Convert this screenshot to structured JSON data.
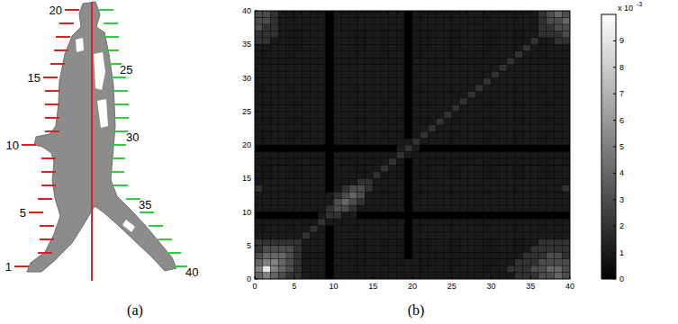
{
  "panel_a": {
    "caption": "(a)",
    "points": 40,
    "labels": [
      1,
      5,
      10,
      15,
      20,
      25,
      30,
      35,
      40
    ]
  },
  "chart_data": {
    "type": "heatmap",
    "caption": "(b)",
    "xlim": [
      0,
      40
    ],
    "ylim": [
      0,
      40
    ],
    "xticks": [
      0,
      5,
      10,
      15,
      20,
      25,
      30,
      35,
      40
    ],
    "yticks": [
      0,
      5,
      10,
      15,
      20,
      25,
      30,
      35,
      40
    ],
    "colorbar": {
      "range": [
        0,
        10
      ],
      "ticks": [
        0,
        1,
        2,
        3,
        4,
        5,
        6,
        7,
        8,
        9
      ],
      "scale_base": "x 10",
      "scale_exponent": "-3"
    },
    "cells": [
      [
        4,
        5,
        4,
        3,
        2,
        2,
        1,
        1,
        1,
        0,
        1,
        1,
        1,
        1,
        1,
        1,
        1,
        1,
        1,
        1,
        1,
        1,
        1,
        1,
        1,
        1,
        1,
        1,
        1,
        1,
        1,
        1,
        1,
        2,
        2,
        2,
        3,
        3,
        4,
        3
      ],
      [
        5,
        9,
        5,
        4,
        3,
        2,
        1,
        1,
        1,
        0,
        1,
        1,
        1,
        1,
        1,
        1,
        1,
        1,
        1,
        1,
        1,
        1,
        1,
        1,
        1,
        1,
        1,
        1,
        1,
        1,
        1,
        1,
        2,
        2,
        2,
        3,
        3,
        4,
        4,
        3
      ],
      [
        4,
        5,
        5,
        4,
        3,
        2,
        1,
        1,
        1,
        0,
        1,
        1,
        1,
        1,
        1,
        1,
        1,
        1,
        1,
        1,
        1,
        1,
        1,
        1,
        1,
        1,
        1,
        1,
        1,
        1,
        1,
        1,
        1,
        2,
        2,
        2,
        3,
        3,
        3,
        3
      ],
      [
        3,
        4,
        4,
        4,
        3,
        2,
        1,
        1,
        1,
        0,
        1,
        1,
        1,
        1,
        1,
        1,
        1,
        1,
        1,
        0,
        1,
        1,
        1,
        1,
        1,
        1,
        1,
        1,
        1,
        1,
        1,
        1,
        1,
        1,
        2,
        2,
        2,
        3,
        3,
        2
      ],
      [
        2,
        3,
        3,
        3,
        3,
        2,
        1,
        1,
        1,
        0,
        1,
        1,
        1,
        1,
        1,
        1,
        1,
        1,
        1,
        0,
        1,
        1,
        1,
        1,
        1,
        1,
        1,
        1,
        1,
        1,
        1,
        1,
        1,
        1,
        1,
        2,
        2,
        2,
        2,
        2
      ],
      [
        2,
        2,
        2,
        2,
        2,
        2,
        1,
        1,
        1,
        0,
        1,
        1,
        1,
        1,
        1,
        1,
        1,
        1,
        1,
        0,
        1,
        1,
        1,
        1,
        1,
        1,
        1,
        1,
        1,
        1,
        1,
        1,
        1,
        1,
        1,
        1,
        2,
        2,
        2,
        2
      ],
      [
        1,
        1,
        1,
        1,
        1,
        1,
        2,
        1,
        1,
        0,
        1,
        1,
        1,
        1,
        1,
        1,
        1,
        1,
        1,
        0,
        1,
        1,
        1,
        1,
        1,
        1,
        1,
        1,
        1,
        1,
        1,
        1,
        1,
        1,
        1,
        1,
        1,
        1,
        1,
        1
      ],
      [
        1,
        1,
        1,
        1,
        1,
        1,
        1,
        2,
        1,
        0,
        1,
        1,
        1,
        1,
        1,
        1,
        1,
        1,
        1,
        0,
        1,
        1,
        1,
        1,
        1,
        1,
        1,
        1,
        1,
        1,
        1,
        1,
        1,
        1,
        1,
        1,
        1,
        1,
        1,
        1
      ],
      [
        1,
        1,
        1,
        1,
        1,
        1,
        1,
        1,
        2,
        1,
        1,
        1,
        1,
        1,
        1,
        1,
        1,
        1,
        1,
        0,
        1,
        1,
        1,
        1,
        1,
        1,
        1,
        1,
        1,
        1,
        1,
        1,
        1,
        1,
        1,
        1,
        1,
        1,
        1,
        1
      ],
      [
        0,
        0,
        0,
        0,
        0,
        0,
        0,
        0,
        1,
        2,
        2,
        1,
        1,
        0,
        0,
        0,
        0,
        0,
        0,
        0,
        0,
        0,
        0,
        0,
        0,
        0,
        0,
        0,
        0,
        0,
        0,
        0,
        0,
        0,
        0,
        0,
        0,
        0,
        0,
        0
      ],
      [
        1,
        1,
        1,
        1,
        1,
        1,
        1,
        1,
        1,
        2,
        3,
        3,
        2,
        1,
        1,
        1,
        1,
        1,
        1,
        0,
        1,
        1,
        1,
        1,
        1,
        1,
        1,
        1,
        1,
        1,
        1,
        1,
        1,
        1,
        1,
        1,
        1,
        1,
        1,
        1
      ],
      [
        1,
        1,
        1,
        1,
        1,
        1,
        1,
        1,
        1,
        1,
        3,
        4,
        3,
        2,
        1,
        1,
        1,
        1,
        1,
        0,
        1,
        1,
        1,
        1,
        1,
        1,
        1,
        1,
        1,
        1,
        1,
        1,
        1,
        1,
        1,
        1,
        1,
        1,
        1,
        1
      ],
      [
        1,
        1,
        1,
        1,
        1,
        1,
        1,
        1,
        1,
        1,
        2,
        3,
        4,
        3,
        1,
        1,
        1,
        1,
        1,
        0,
        1,
        1,
        1,
        1,
        1,
        1,
        1,
        1,
        1,
        1,
        1,
        1,
        1,
        1,
        1,
        1,
        1,
        1,
        1,
        1
      ],
      [
        2,
        1,
        1,
        1,
        1,
        1,
        1,
        1,
        1,
        0,
        1,
        2,
        3,
        3,
        2,
        1,
        1,
        1,
        1,
        0,
        1,
        1,
        1,
        1,
        1,
        1,
        1,
        1,
        1,
        1,
        1,
        1,
        1,
        1,
        1,
        1,
        1,
        1,
        1,
        2
      ],
      [
        1,
        1,
        1,
        1,
        1,
        1,
        1,
        1,
        1,
        0,
        1,
        1,
        1,
        2,
        2,
        1,
        1,
        1,
        1,
        0,
        1,
        1,
        1,
        1,
        1,
        1,
        1,
        1,
        1,
        1,
        1,
        1,
        1,
        1,
        1,
        1,
        1,
        1,
        1,
        1
      ],
      [
        1,
        1,
        1,
        1,
        1,
        1,
        1,
        1,
        1,
        0,
        1,
        1,
        1,
        1,
        1,
        2,
        1,
        1,
        1,
        0,
        1,
        1,
        1,
        1,
        1,
        1,
        1,
        1,
        1,
        1,
        1,
        1,
        1,
        1,
        1,
        1,
        1,
        1,
        1,
        1
      ],
      [
        1,
        1,
        1,
        1,
        1,
        1,
        1,
        1,
        1,
        0,
        1,
        1,
        1,
        1,
        1,
        1,
        2,
        1,
        1,
        0,
        1,
        1,
        1,
        1,
        1,
        1,
        1,
        1,
        1,
        1,
        1,
        1,
        1,
        1,
        1,
        1,
        1,
        1,
        1,
        1
      ],
      [
        1,
        1,
        1,
        1,
        1,
        1,
        1,
        1,
        1,
        0,
        1,
        1,
        1,
        1,
        1,
        1,
        1,
        2,
        1,
        0,
        1,
        1,
        1,
        1,
        1,
        1,
        1,
        1,
        1,
        1,
        1,
        1,
        1,
        1,
        1,
        1,
        1,
        1,
        1,
        1
      ],
      [
        1,
        1,
        1,
        1,
        1,
        1,
        1,
        1,
        1,
        0,
        1,
        1,
        1,
        1,
        1,
        1,
        1,
        1,
        2,
        1,
        1,
        1,
        1,
        1,
        1,
        1,
        1,
        1,
        1,
        1,
        1,
        1,
        1,
        1,
        1,
        1,
        1,
        1,
        1,
        1
      ],
      [
        0,
        0,
        0,
        0,
        0,
        0,
        0,
        0,
        0,
        0,
        0,
        0,
        0,
        0,
        0,
        0,
        0,
        0,
        1,
        2,
        1,
        0,
        0,
        0,
        0,
        0,
        0,
        0,
        0,
        0,
        0,
        0,
        0,
        0,
        0,
        0,
        0,
        0,
        0,
        0
      ],
      [
        1,
        1,
        1,
        1,
        1,
        1,
        1,
        1,
        1,
        0,
        1,
        1,
        1,
        1,
        1,
        1,
        1,
        1,
        1,
        1,
        2,
        1,
        1,
        1,
        1,
        1,
        1,
        1,
        1,
        1,
        1,
        1,
        1,
        1,
        1,
        1,
        1,
        1,
        1,
        1
      ],
      [
        1,
        1,
        1,
        1,
        1,
        1,
        1,
        1,
        1,
        0,
        1,
        1,
        1,
        1,
        1,
        1,
        1,
        1,
        1,
        0,
        1,
        2,
        1,
        1,
        1,
        1,
        1,
        1,
        1,
        1,
        1,
        1,
        1,
        1,
        1,
        1,
        1,
        1,
        1,
        1
      ],
      [
        1,
        1,
        1,
        1,
        1,
        1,
        1,
        1,
        1,
        0,
        1,
        1,
        1,
        1,
        1,
        1,
        1,
        1,
        1,
        0,
        1,
        1,
        2,
        1,
        1,
        1,
        1,
        1,
        1,
        1,
        1,
        1,
        1,
        1,
        1,
        1,
        1,
        1,
        1,
        1
      ],
      [
        1,
        1,
        1,
        1,
        1,
        1,
        1,
        1,
        1,
        0,
        1,
        1,
        1,
        1,
        1,
        1,
        1,
        1,
        1,
        0,
        1,
        1,
        1,
        2,
        1,
        1,
        1,
        1,
        1,
        1,
        1,
        1,
        1,
        1,
        1,
        1,
        1,
        1,
        1,
        1
      ],
      [
        1,
        1,
        1,
        1,
        1,
        1,
        1,
        1,
        1,
        0,
        1,
        1,
        1,
        1,
        1,
        1,
        1,
        1,
        1,
        0,
        1,
        1,
        1,
        1,
        2,
        1,
        1,
        1,
        1,
        1,
        1,
        1,
        1,
        1,
        1,
        1,
        1,
        1,
        1,
        1
      ],
      [
        1,
        1,
        1,
        1,
        1,
        1,
        1,
        1,
        1,
        0,
        1,
        1,
        1,
        1,
        1,
        1,
        1,
        1,
        1,
        0,
        1,
        1,
        1,
        1,
        1,
        2,
        1,
        1,
        1,
        1,
        1,
        1,
        1,
        1,
        1,
        1,
        1,
        1,
        1,
        1
      ],
      [
        1,
        1,
        1,
        1,
        1,
        1,
        1,
        1,
        1,
        0,
        1,
        1,
        1,
        1,
        1,
        1,
        1,
        1,
        1,
        0,
        1,
        1,
        1,
        1,
        1,
        1,
        2,
        1,
        1,
        1,
        1,
        1,
        1,
        1,
        1,
        1,
        1,
        1,
        1,
        1
      ],
      [
        1,
        1,
        1,
        1,
        1,
        1,
        1,
        1,
        1,
        0,
        1,
        1,
        1,
        1,
        1,
        1,
        1,
        1,
        1,
        0,
        1,
        1,
        1,
        1,
        1,
        1,
        1,
        2,
        1,
        1,
        1,
        1,
        1,
        1,
        1,
        1,
        1,
        1,
        1,
        1
      ],
      [
        1,
        1,
        1,
        1,
        1,
        1,
        1,
        1,
        1,
        0,
        1,
        1,
        1,
        1,
        1,
        1,
        1,
        1,
        1,
        0,
        1,
        1,
        1,
        1,
        1,
        1,
        1,
        1,
        2,
        1,
        1,
        1,
        1,
        1,
        1,
        1,
        1,
        1,
        1,
        1
      ],
      [
        1,
        1,
        1,
        1,
        1,
        1,
        1,
        1,
        1,
        0,
        1,
        1,
        1,
        1,
        1,
        1,
        1,
        1,
        1,
        0,
        1,
        1,
        1,
        1,
        1,
        1,
        1,
        1,
        1,
        2,
        1,
        1,
        1,
        1,
        1,
        1,
        1,
        1,
        1,
        1
      ],
      [
        1,
        1,
        1,
        1,
        1,
        1,
        1,
        1,
        1,
        0,
        1,
        1,
        1,
        1,
        1,
        1,
        1,
        1,
        1,
        0,
        1,
        1,
        1,
        1,
        1,
        1,
        1,
        1,
        1,
        1,
        2,
        1,
        1,
        1,
        1,
        1,
        1,
        1,
        1,
        1
      ],
      [
        1,
        1,
        1,
        1,
        1,
        1,
        1,
        1,
        1,
        0,
        1,
        1,
        1,
        1,
        1,
        1,
        1,
        1,
        1,
        0,
        1,
        1,
        1,
        1,
        1,
        1,
        1,
        1,
        1,
        1,
        1,
        2,
        1,
        1,
        1,
        1,
        1,
        1,
        1,
        1
      ],
      [
        1,
        1,
        1,
        1,
        1,
        1,
        1,
        1,
        1,
        0,
        1,
        1,
        1,
        1,
        1,
        1,
        1,
        1,
        1,
        0,
        1,
        1,
        1,
        1,
        1,
        1,
        1,
        1,
        1,
        1,
        1,
        1,
        2,
        1,
        1,
        1,
        1,
        1,
        1,
        1
      ],
      [
        1,
        1,
        1,
        1,
        1,
        1,
        1,
        1,
        1,
        0,
        1,
        1,
        1,
        1,
        1,
        1,
        1,
        1,
        1,
        0,
        1,
        1,
        1,
        1,
        1,
        1,
        1,
        1,
        1,
        1,
        1,
        1,
        1,
        2,
        1,
        1,
        1,
        1,
        1,
        1
      ],
      [
        1,
        1,
        1,
        1,
        1,
        1,
        1,
        1,
        1,
        0,
        1,
        1,
        1,
        1,
        1,
        1,
        1,
        1,
        1,
        0,
        1,
        1,
        1,
        1,
        1,
        1,
        1,
        1,
        1,
        1,
        1,
        1,
        1,
        1,
        2,
        1,
        1,
        1,
        1,
        1
      ],
      [
        2,
        2,
        1,
        1,
        1,
        1,
        1,
        1,
        1,
        0,
        1,
        1,
        1,
        1,
        1,
        1,
        1,
        1,
        1,
        0,
        1,
        1,
        1,
        1,
        1,
        1,
        1,
        1,
        1,
        1,
        1,
        1,
        1,
        1,
        1,
        2,
        1,
        1,
        2,
        2
      ],
      [
        2,
        2,
        2,
        1,
        1,
        1,
        1,
        1,
        1,
        0,
        1,
        1,
        1,
        1,
        1,
        1,
        1,
        1,
        1,
        0,
        1,
        1,
        1,
        1,
        1,
        1,
        1,
        1,
        1,
        1,
        1,
        1,
        1,
        1,
        1,
        1,
        2,
        2,
        2,
        3
      ],
      [
        3,
        2,
        2,
        1,
        1,
        1,
        1,
        1,
        1,
        0,
        1,
        1,
        1,
        1,
        1,
        1,
        1,
        1,
        1,
        0,
        1,
        1,
        1,
        1,
        1,
        1,
        1,
        1,
        1,
        1,
        1,
        1,
        1,
        1,
        1,
        1,
        2,
        2,
        3,
        3
      ],
      [
        3,
        3,
        2,
        1,
        1,
        1,
        1,
        1,
        1,
        0,
        1,
        1,
        1,
        1,
        1,
        1,
        1,
        1,
        1,
        0,
        1,
        1,
        1,
        1,
        1,
        1,
        1,
        1,
        1,
        1,
        1,
        1,
        1,
        1,
        1,
        1,
        2,
        3,
        3,
        4
      ],
      [
        3,
        3,
        2,
        1,
        1,
        1,
        1,
        1,
        1,
        0,
        1,
        1,
        1,
        1,
        1,
        1,
        1,
        1,
        1,
        0,
        1,
        1,
        1,
        1,
        1,
        1,
        1,
        1,
        1,
        1,
        1,
        1,
        1,
        1,
        1,
        1,
        2,
        3,
        4,
        3
      ]
    ]
  }
}
